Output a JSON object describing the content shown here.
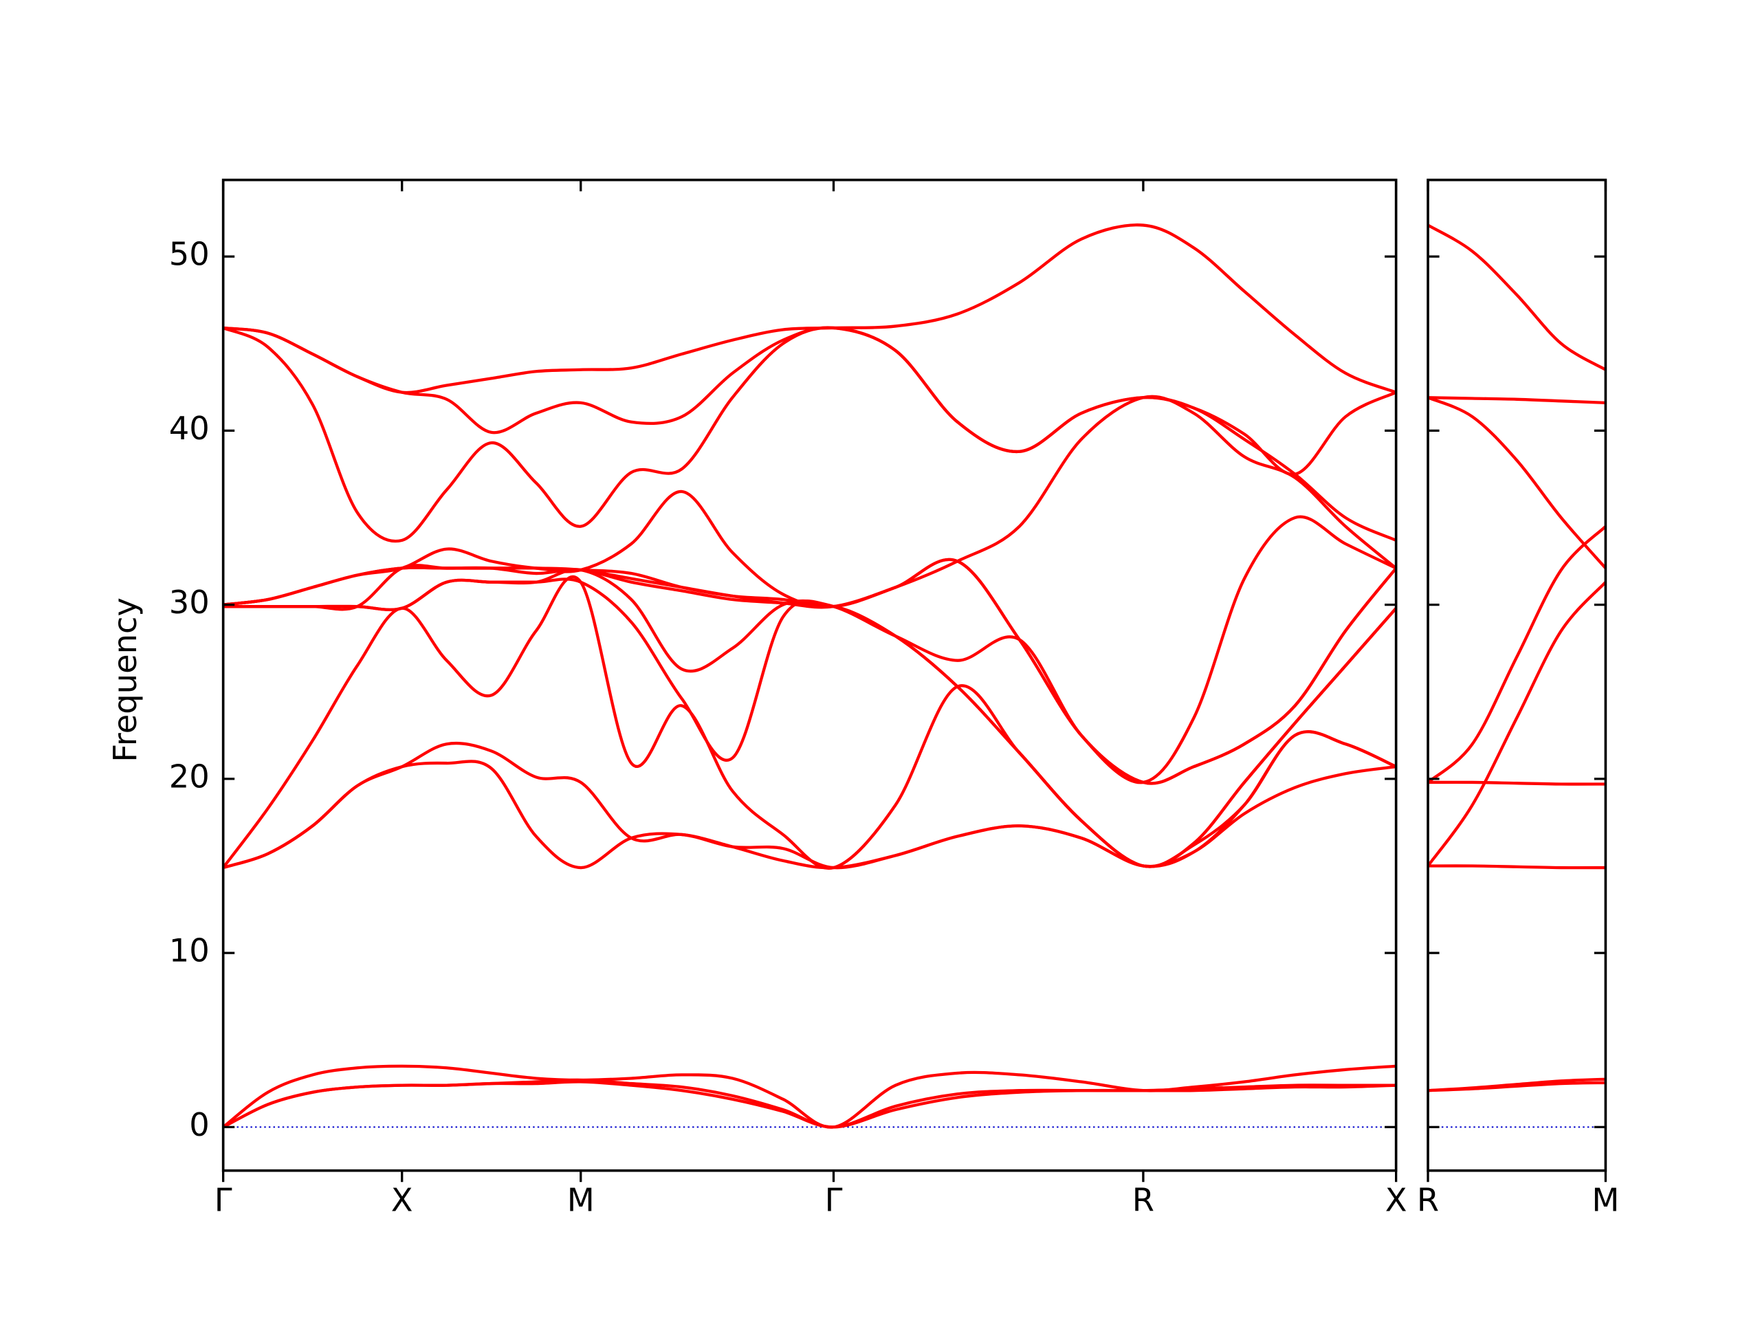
{
  "chart_data": [
    {
      "type": "line",
      "ylabel": "Frequency",
      "color": "#ff0000",
      "x": [
        0,
        0.125,
        0.25,
        0.375,
        0.5,
        0.625,
        0.75,
        0.875,
        1.0,
        1.1414,
        1.2828,
        1.4243,
        1.5657,
        1.7071,
        1.8803,
        2.0535,
        2.2267,
        2.3999,
        2.5731,
        2.7145,
        2.8559,
        2.9974,
        3.1388,
        3.2802
      ],
      "xlim": [
        0,
        3.2802
      ],
      "xticks": [
        {
          "value": 0,
          "label": "Γ"
        },
        {
          "value": 0.5,
          "label": "X"
        },
        {
          "value": 1.0,
          "label": "M"
        },
        {
          "value": 1.7071,
          "label": "Γ"
        },
        {
          "value": 2.5731,
          "label": "R"
        },
        {
          "value": 3.2802,
          "label": "X"
        }
      ],
      "ylim": [
        -2.5,
        54.4
      ],
      "yticks": [
        0,
        10,
        20,
        30,
        40,
        50
      ],
      "ytick_labels": true,
      "reference_line": {
        "value": 0,
        "color": "#0000cc"
      },
      "series": [
        {
          "values": [
            0,
            1.3,
            2.0,
            2.3,
            2.4,
            2.4,
            2.5,
            2.5,
            2.6,
            2.4,
            2.1,
            1.6,
            0.9,
            0,
            1.0,
            1.7,
            2.0,
            2.1,
            2.1,
            2.1,
            2.2,
            2.3,
            2.3,
            2.4
          ]
        },
        {
          "values": [
            0,
            1.3,
            2.0,
            2.3,
            2.4,
            2.4,
            2.5,
            2.6,
            2.7,
            2.5,
            2.3,
            1.8,
            1.0,
            0,
            1.2,
            1.9,
            2.1,
            2.1,
            2.1,
            2.2,
            2.3,
            2.4,
            2.4,
            2.4
          ]
        },
        {
          "values": [
            0,
            2.0,
            3.0,
            3.4,
            3.5,
            3.4,
            3.1,
            2.8,
            2.7,
            2.8,
            3.0,
            2.8,
            1.6,
            0,
            2.4,
            3.1,
            3.0,
            2.6,
            2.1,
            2.3,
            2.6,
            3.0,
            3.3,
            3.5
          ]
        },
        {
          "values": [
            14.9,
            15.7,
            17.3,
            19.6,
            20.7,
            20.9,
            20.6,
            16.7,
            14.9,
            16.6,
            16.8,
            16.1,
            15.3,
            14.9,
            15.6,
            16.7,
            17.3,
            16.6,
            15.0,
            15.8,
            18.0,
            19.5,
            20.3,
            20.7
          ]
        },
        {
          "values": [
            14.9,
            15.7,
            17.3,
            19.6,
            20.7,
            22.0,
            21.6,
            20.1,
            19.8,
            16.6,
            16.8,
            16.1,
            16.0,
            14.9,
            15.6,
            16.7,
            17.3,
            16.6,
            15.0,
            15.8,
            18.5,
            22.5,
            22.0,
            20.7
          ]
        },
        {
          "values": [
            14.9,
            18.3,
            22.2,
            26.5,
            29.8,
            26.8,
            24.8,
            28.5,
            31.3,
            20.9,
            24.2,
            19.3,
            16.8,
            14.9,
            18.5,
            25.3,
            21.5,
            17.6,
            15.0,
            16.2,
            18.5,
            22.5,
            22.0,
            20.7
          ]
        },
        {
          "values": [
            29.9,
            29.9,
            29.9,
            29.9,
            29.8,
            31.3,
            31.3,
            31.3,
            31.3,
            29.0,
            24.6,
            21.2,
            29.3,
            29.9,
            28.2,
            25.3,
            21.5,
            17.6,
            15.0,
            16.3,
            19.8,
            23.2,
            26.5,
            29.8
          ]
        },
        {
          "values": [
            29.9,
            29.9,
            29.9,
            29.9,
            29.8,
            31.3,
            31.3,
            31.3,
            32.0,
            30.3,
            26.3,
            27.5,
            30.0,
            29.9,
            28.2,
            25.3,
            21.5,
            17.6,
            15.0,
            16.3,
            19.8,
            23.2,
            26.5,
            29.8
          ]
        },
        {
          "values": [
            29.9,
            29.9,
            29.9,
            29.9,
            32.1,
            32.1,
            32.1,
            31.8,
            32.0,
            31.3,
            30.8,
            30.3,
            30.1,
            29.9,
            28.2,
            26.8,
            28.0,
            22.5,
            19.8,
            20.7,
            22.0,
            24.2,
            28.5,
            32.1
          ]
        },
        {
          "values": [
            30.0,
            30.3,
            31.0,
            31.7,
            32.1,
            32.1,
            32.1,
            32.1,
            32.0,
            31.5,
            31.0,
            30.5,
            30.1,
            29.9,
            31.0,
            32.5,
            28.0,
            22.5,
            19.8,
            20.7,
            22.0,
            24.2,
            28.5,
            32.1
          ]
        },
        {
          "values": [
            30.0,
            30.3,
            31.0,
            31.7,
            32.1,
            32.1,
            32.1,
            32.1,
            32.0,
            31.8,
            31.0,
            30.5,
            30.3,
            29.9,
            31.0,
            32.5,
            28.0,
            22.5,
            19.8,
            23.5,
            31.5,
            35.0,
            33.5,
            32.1
          ]
        },
        {
          "values": [
            30.0,
            30.3,
            31.0,
            31.7,
            32.1,
            33.2,
            32.5,
            32.1,
            32.0,
            33.5,
            36.5,
            33.0,
            30.6,
            29.9,
            31.0,
            32.5,
            34.5,
            39.5,
            41.9,
            41.0,
            38.5,
            37.3,
            34.5,
            32.1
          ]
        },
        {
          "values": [
            45.9,
            44.8,
            41.5,
            35.3,
            33.7,
            36.6,
            39.3,
            37.0,
            34.5,
            37.6,
            37.8,
            41.9,
            45.0,
            45.9,
            44.6,
            40.5,
            38.8,
            41.0,
            41.9,
            41.3,
            39.5,
            37.5,
            35.0,
            33.7
          ]
        },
        {
          "values": [
            45.9,
            45.6,
            44.4,
            43.1,
            42.2,
            41.8,
            39.9,
            41.0,
            41.6,
            40.5,
            40.8,
            43.3,
            45.2,
            45.9,
            44.6,
            40.5,
            38.8,
            41.0,
            41.9,
            41.3,
            39.8,
            37.5,
            40.8,
            42.2
          ]
        },
        {
          "values": [
            45.9,
            45.6,
            44.4,
            43.1,
            42.2,
            42.6,
            43.0,
            43.4,
            43.5,
            43.6,
            44.4,
            45.2,
            45.8,
            45.9,
            46.0,
            46.7,
            48.5,
            51.0,
            51.8,
            50.5,
            48.0,
            45.5,
            43.3,
            42.2
          ]
        }
      ]
    },
    {
      "type": "line",
      "color": "#ff0000",
      "x": [
        0,
        0.125,
        0.25,
        0.375,
        0.5
      ],
      "xlim": [
        0,
        0.5
      ],
      "xticks": [
        {
          "value": 0,
          "label": "R"
        },
        {
          "value": 0.5,
          "label": "M"
        }
      ],
      "ylim": [
        -2.5,
        54.4
      ],
      "yticks": [
        0,
        10,
        20,
        30,
        40,
        50
      ],
      "ytick_labels": false,
      "reference_line": {
        "value": 0,
        "color": "#0000cc"
      },
      "series": [
        {
          "values": [
            2.1,
            2.2,
            2.35,
            2.5,
            2.55
          ]
        },
        {
          "values": [
            2.1,
            2.25,
            2.45,
            2.65,
            2.75
          ]
        },
        {
          "values": [
            15.0,
            15.0,
            14.95,
            14.9,
            14.9
          ]
        },
        {
          "values": [
            15.0,
            18.5,
            23.5,
            28.5,
            31.3
          ]
        },
        {
          "values": [
            19.8,
            19.8,
            19.75,
            19.7,
            19.7
          ]
        },
        {
          "values": [
            19.8,
            22.0,
            27.0,
            32.0,
            34.5
          ]
        },
        {
          "values": [
            41.9,
            41.85,
            41.8,
            41.7,
            41.6
          ]
        },
        {
          "values": [
            41.9,
            40.8,
            38.3,
            35.0,
            32.1
          ]
        },
        {
          "values": [
            51.8,
            50.3,
            47.8,
            45.0,
            43.5
          ]
        }
      ]
    }
  ]
}
